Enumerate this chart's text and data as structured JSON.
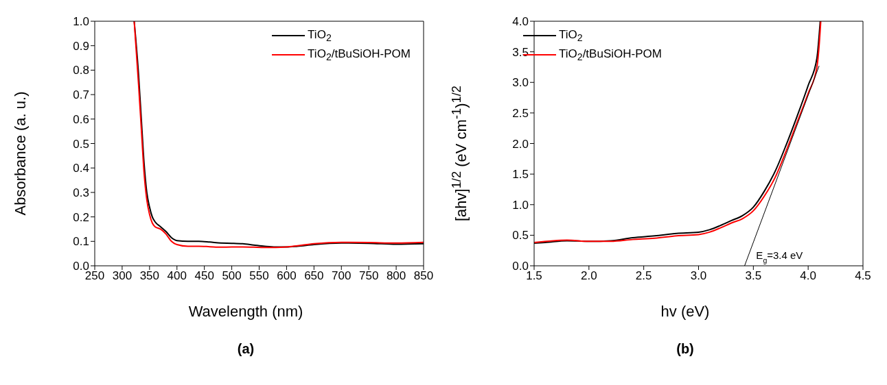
{
  "chart_data": [
    {
      "type": "line",
      "xlabel": "Wavelength (nm)",
      "ylabel": "Absorbance (a. u.)",
      "xlim": [
        250,
        850
      ],
      "ylim": [
        0,
        1
      ],
      "xticks": [
        250,
        300,
        350,
        400,
        450,
        500,
        550,
        600,
        650,
        700,
        750,
        800,
        850
      ],
      "yticks": [
        {
          "value": 0,
          "label": "0.0"
        },
        0.1,
        0.2,
        0.3,
        0.4,
        0.5,
        0.6,
        0.7,
        0.8,
        0.9,
        {
          "value": 1,
          "label": "1.0"
        }
      ],
      "legend": "top right",
      "marker": "none",
      "line_style": "solid",
      "annotations": [
        "(a)"
      ],
      "series": [
        {
          "name": "TiO$_{2}$",
          "color": "#000000",
          "x": [
            322,
            330,
            335,
            340,
            345,
            350,
            355,
            360,
            370,
            380,
            390,
            400,
            420,
            440,
            460,
            480,
            500,
            520,
            540,
            560,
            580,
            600,
            620,
            650,
            700,
            750,
            800,
            850
          ],
          "values": [
            1.0,
            0.78,
            0.6,
            0.42,
            0.3,
            0.24,
            0.2,
            0.18,
            0.16,
            0.14,
            0.115,
            0.103,
            0.1,
            0.1,
            0.097,
            0.093,
            0.092,
            0.09,
            0.085,
            0.08,
            0.077,
            0.077,
            0.08,
            0.087,
            0.093,
            0.092,
            0.088,
            0.09
          ]
        },
        {
          "name": "TiO$_{2}$/tBuSiOH-POM",
          "color": "#ff0000",
          "x": [
            322,
            330,
            335,
            340,
            345,
            350,
            355,
            360,
            370,
            380,
            390,
            400,
            420,
            440,
            460,
            480,
            500,
            520,
            540,
            560,
            580,
            600,
            620,
            650,
            700,
            750,
            800,
            850
          ],
          "values": [
            1.0,
            0.74,
            0.56,
            0.38,
            0.27,
            0.21,
            0.175,
            0.16,
            0.15,
            0.13,
            0.1,
            0.087,
            0.08,
            0.08,
            0.078,
            0.076,
            0.077,
            0.077,
            0.076,
            0.075,
            0.075,
            0.077,
            0.082,
            0.09,
            0.096,
            0.095,
            0.093,
            0.096
          ]
        }
      ]
    },
    {
      "type": "line",
      "xlabel": "hv (eV)",
      "ylabel": "[ahv]$^{1/2}$ (eV cm$^{-1}$)$^{1/2}$",
      "xlim": [
        1.5,
        4.5
      ],
      "ylim": [
        0,
        4
      ],
      "xticks": [
        1.5,
        {
          "value": 2,
          "label": "2.0"
        },
        2.5,
        {
          "value": 3,
          "label": "3.0"
        },
        3.5,
        {
          "value": 4,
          "label": "4.0"
        },
        4.5
      ],
      "yticks": [
        {
          "value": 0,
          "label": "0.0"
        },
        0.5,
        {
          "value": 1,
          "label": "1.0"
        },
        1.5,
        {
          "value": 2,
          "label": "2.0"
        },
        2.5,
        {
          "value": 3,
          "label": "3.0"
        },
        3.5,
        {
          "value": 4,
          "label": "4.0"
        }
      ],
      "legend": "top left",
      "marker": "none",
      "line_style": "solid",
      "annotations": [
        {
          "text": "E$_{g}$=3.4 eV",
          "x": 3.4,
          "y": 0
        },
        "(b)"
      ],
      "series": [
        {
          "name": "TiO$_{2}$",
          "color": "#000000",
          "x": [
            1.5,
            1.6,
            1.8,
            2.0,
            2.2,
            2.4,
            2.6,
            2.8,
            3.0,
            3.1,
            3.2,
            3.3,
            3.4,
            3.5,
            3.6,
            3.7,
            3.8,
            3.9,
            4.0,
            4.08,
            4.11
          ],
          "values": [
            0.37,
            0.38,
            0.41,
            0.4,
            0.41,
            0.46,
            0.49,
            0.53,
            0.55,
            0.59,
            0.66,
            0.74,
            0.82,
            0.96,
            1.22,
            1.55,
            1.98,
            2.45,
            2.95,
            3.4,
            4.0
          ]
        },
        {
          "name": "TiO$_{2}$/tBuSiOH-POM",
          "color": "#ff0000",
          "x": [
            1.5,
            1.8,
            2.0,
            2.2,
            2.4,
            2.6,
            2.8,
            3.0,
            3.1,
            3.2,
            3.3,
            3.4,
            3.5,
            3.6,
            3.7,
            3.8,
            3.9,
            4.0,
            4.08,
            4.1,
            4.115
          ],
          "values": [
            0.38,
            0.42,
            0.4,
            0.4,
            0.43,
            0.45,
            0.49,
            0.51,
            0.55,
            0.62,
            0.7,
            0.77,
            0.9,
            1.14,
            1.45,
            1.88,
            2.35,
            2.82,
            3.25,
            3.6,
            4.0
          ]
        },
        {
          "type": "line",
          "color": "#000000",
          "x": [
            3.42,
            4.1
          ],
          "values": [
            0,
            3.27
          ]
        }
      ]
    }
  ]
}
